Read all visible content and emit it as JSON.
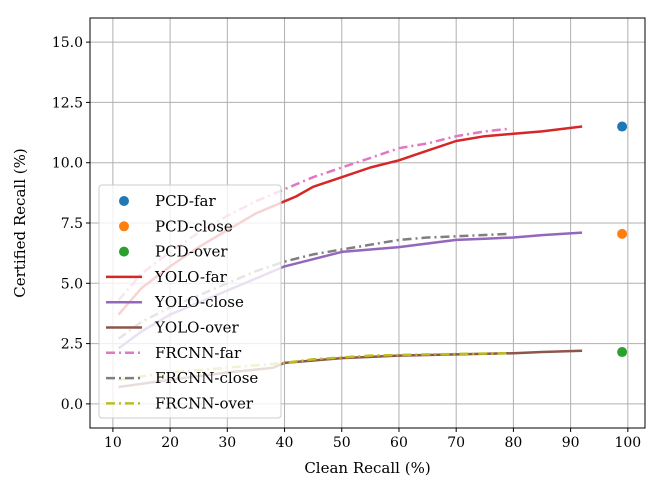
{
  "chart_data": {
    "type": "line",
    "title": "",
    "xlabel": "Clean Recall (%)",
    "ylabel": "Certified Recall (%)",
    "xlim": [
      6,
      103
    ],
    "ylim": [
      -1.0,
      16.0
    ],
    "xticks": [
      10,
      20,
      30,
      40,
      50,
      60,
      70,
      80,
      90,
      100
    ],
    "yticks": [
      0.0,
      2.5,
      5.0,
      7.5,
      10.0,
      12.5,
      15.0
    ],
    "ytick_labels": [
      "0.0",
      "2.5",
      "5.0",
      "7.5",
      "10.0",
      "12.5",
      "15.0"
    ],
    "grid": true,
    "legend_position": "lower-left",
    "series": [
      {
        "name": "PCD-far",
        "kind": "point",
        "color": "#1f77b4",
        "x": [
          99
        ],
        "y": [
          11.5
        ]
      },
      {
        "name": "PCD-close",
        "kind": "point",
        "color": "#ff7f0e",
        "x": [
          99
        ],
        "y": [
          7.05
        ]
      },
      {
        "name": "PCD-over",
        "kind": "point",
        "color": "#2ca02c",
        "x": [
          99
        ],
        "y": [
          2.15
        ]
      },
      {
        "name": "YOLO-far",
        "kind": "solid",
        "color": "#d62728",
        "x": [
          11,
          15,
          20,
          25,
          30,
          35,
          40,
          42,
          45,
          50,
          55,
          60,
          65,
          70,
          75,
          80,
          85,
          92
        ],
        "y": [
          3.7,
          4.8,
          5.7,
          6.5,
          7.2,
          7.9,
          8.4,
          8.6,
          9.0,
          9.4,
          9.8,
          10.1,
          10.5,
          10.9,
          11.1,
          11.2,
          11.3,
          11.5
        ]
      },
      {
        "name": "YOLO-close",
        "kind": "solid",
        "color": "#9467bd",
        "x": [
          11,
          15,
          20,
          25,
          30,
          35,
          40,
          45,
          50,
          55,
          60,
          65,
          70,
          75,
          80,
          85,
          92
        ],
        "y": [
          2.3,
          3.0,
          3.7,
          4.2,
          4.7,
          5.2,
          5.7,
          6.0,
          6.3,
          6.4,
          6.5,
          6.65,
          6.8,
          6.85,
          6.9,
          7.0,
          7.1
        ]
      },
      {
        "name": "YOLO-over",
        "kind": "solid",
        "color": "#8c564b",
        "x": [
          11,
          20,
          30,
          38,
          40,
          50,
          60,
          70,
          80,
          85,
          92
        ],
        "y": [
          0.7,
          1.0,
          1.3,
          1.5,
          1.7,
          1.9,
          2.0,
          2.05,
          2.1,
          2.15,
          2.2
        ]
      },
      {
        "name": "FRCNN-far",
        "kind": "dashdot",
        "color": "#e377c2",
        "x": [
          11,
          15,
          20,
          25,
          30,
          35,
          40,
          45,
          50,
          55,
          60,
          65,
          70,
          75,
          79
        ],
        "y": [
          4.3,
          5.4,
          6.3,
          7.1,
          7.8,
          8.4,
          8.9,
          9.4,
          9.8,
          10.2,
          10.6,
          10.8,
          11.1,
          11.3,
          11.4
        ]
      },
      {
        "name": "FRCNN-close",
        "kind": "dashdot",
        "color": "#7f7f7f",
        "x": [
          11,
          15,
          20,
          25,
          30,
          35,
          40,
          45,
          50,
          55,
          60,
          65,
          70,
          79
        ],
        "y": [
          2.7,
          3.4,
          4.0,
          4.5,
          5.0,
          5.5,
          5.9,
          6.2,
          6.4,
          6.6,
          6.8,
          6.9,
          6.95,
          7.05
        ]
      },
      {
        "name": "FRCNN-over",
        "kind": "dashdot",
        "color": "#bcbd22",
        "x": [
          11,
          20,
          30,
          40,
          45,
          55,
          65,
          79
        ],
        "y": [
          1.0,
          1.3,
          1.5,
          1.7,
          1.85,
          2.0,
          2.05,
          2.1
        ]
      }
    ]
  }
}
